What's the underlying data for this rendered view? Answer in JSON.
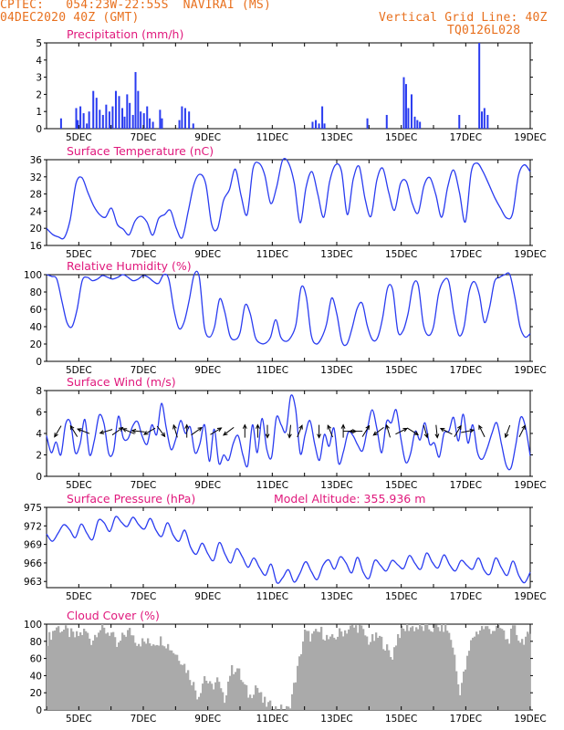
{
  "header": {
    "line1_left": "CPTEC:   054:23W-22:55S  NAVIRAI (MS)",
    "line2_left": "04DEC2020 40Z (GMT)",
    "line1_right": "Vertical Grid Line: 40Z",
    "line2_right": "TQ0126L028"
  },
  "colors": {
    "header": "#e8701e",
    "title": "#e0187c",
    "line": "#2a3cf0",
    "cloud": "#aaaaaa",
    "axis": "#000000"
  },
  "x_ticks": [
    "5DEC",
    "7DEC",
    "9DEC",
    "11DEC",
    "13DEC",
    "15DEC",
    "17DEC",
    "19DEC"
  ],
  "chart_data": [
    {
      "type": "bar",
      "title": "Precipitation (mm/h)",
      "ylim": [
        0,
        5
      ],
      "yticks": [
        0,
        1,
        2,
        3,
        4,
        5
      ],
      "x_start": 4.0,
      "x_end": 19.0,
      "x": [
        4.45,
        4.92,
        4.97,
        5.05,
        5.15,
        5.25,
        5.32,
        5.45,
        5.55,
        5.65,
        5.75,
        5.85,
        5.95,
        6.05,
        6.15,
        6.25,
        6.35,
        6.42,
        6.5,
        6.58,
        6.68,
        6.76,
        6.84,
        6.92,
        7.02,
        7.12,
        7.2,
        7.3,
        7.52,
        7.58,
        8.12,
        8.2,
        8.3,
        8.42,
        8.55,
        12.25,
        12.35,
        12.45,
        12.55,
        12.62,
        13.95,
        14.55,
        15.08,
        15.15,
        15.22,
        15.32,
        15.42,
        15.5,
        15.58,
        16.8,
        17.42,
        17.5,
        17.58,
        17.68
      ],
      "values": [
        0.6,
        1.2,
        0.5,
        1.3,
        0.9,
        0.3,
        1.0,
        2.2,
        1.8,
        1.1,
        0.8,
        1.4,
        1.0,
        1.3,
        2.2,
        1.9,
        1.2,
        0.7,
        2.0,
        1.5,
        0.8,
        3.3,
        2.2,
        1.0,
        0.9,
        1.3,
        0.6,
        0.4,
        1.1,
        0.6,
        0.5,
        1.3,
        1.2,
        1.0,
        0.3,
        0.4,
        0.5,
        0.3,
        1.3,
        0.3,
        0.6,
        0.8,
        3.0,
        2.6,
        1.2,
        2.0,
        0.7,
        0.5,
        0.4,
        0.8,
        5.0,
        1.0,
        1.2,
        0.8
      ],
      "xlabel": "",
      "ylabel": ""
    },
    {
      "type": "line",
      "title": "Surface Temperature (nC)",
      "ylim": [
        16,
        36
      ],
      "yticks": [
        16,
        20,
        24,
        28,
        32,
        36
      ],
      "x_start": 4.0,
      "x_end": 19.0,
      "values": [
        20,
        18.6,
        18,
        17.8,
        22,
        30.5,
        31.8,
        28.4,
        25.2,
        23.2,
        22.6,
        24.7,
        20.9,
        19.8,
        18.5,
        21.7,
        22.8,
        21.5,
        18.4,
        22.3,
        23.2,
        24.2,
        20,
        17.8,
        23.8,
        30.3,
        32.6,
        30.3,
        20.9,
        20,
        26.5,
        29,
        33.8,
        27.5,
        23.2,
        33.9,
        35.2,
        32.4,
        25.8,
        29.6,
        35.8,
        35.3,
        30.5,
        21.3,
        29.6,
        33.2,
        27.9,
        22.6,
        30.9,
        34.8,
        33.3,
        23.2,
        31.5,
        34.4,
        26.9,
        22.8,
        31.3,
        34,
        28.4,
        24.2,
        30.4,
        30.9,
        25.8,
        23.6,
        30,
        31.8,
        27.8,
        22.6,
        29.6,
        33.6,
        28.4,
        21.5,
        33.2,
        35.2,
        33.2,
        30.2,
        27.1,
        24.6,
        22.4,
        23.4,
        32.3,
        34.8,
        33.2
      ],
      "xlabel": "",
      "ylabel": ""
    },
    {
      "type": "line",
      "title": "Relative Humidity (%)",
      "ylim": [
        0,
        100
      ],
      "yticks": [
        0,
        20,
        40,
        60,
        80,
        100
      ],
      "x_start": 4.0,
      "x_end": 19.0,
      "values": [
        100,
        98,
        95,
        70,
        45,
        40,
        60,
        93,
        97,
        93,
        95,
        99,
        97,
        95,
        97,
        100,
        97,
        93,
        95,
        99,
        97,
        92,
        90,
        100,
        95,
        60,
        38,
        45,
        70,
        100,
        97,
        40,
        28,
        40,
        72,
        57,
        30,
        25,
        33,
        65,
        55,
        28,
        21,
        21,
        28,
        48,
        28,
        23,
        28,
        43,
        85,
        75,
        30,
        20,
        27,
        43,
        73,
        55,
        23,
        20,
        38,
        61,
        67,
        41,
        25,
        27,
        50,
        85,
        82,
        35,
        35,
        55,
        88,
        88,
        43,
        30,
        40,
        78,
        93,
        92,
        55,
        30,
        40,
        80,
        92,
        77,
        45,
        62,
        92,
        97,
        100,
        100,
        73,
        40,
        28,
        32
      ],
      "xlabel": "",
      "ylabel": ""
    },
    {
      "type": "line",
      "title": "Surface Wind (m/s)",
      "ylim": [
        0,
        8
      ],
      "yticks": [
        0,
        2,
        4,
        6,
        8
      ],
      "x_start": 4.0,
      "x_end": 19.0,
      "values": [
        3.8,
        2.2,
        3.2,
        2.0,
        4.9,
        5.0,
        2.2,
        3.0,
        5.3,
        2.0,
        3.4,
        5.7,
        4.9,
        2.1,
        2.4,
        5.6,
        3.6,
        3.5,
        4.7,
        5.1,
        3.7,
        3.0,
        4.8,
        3.9,
        6.8,
        4.5,
        2.5,
        3.5,
        5.2,
        4.0,
        4.6,
        2.2,
        3.0,
        4.8,
        1.4,
        4.4,
        1.2,
        2.0,
        1.5,
        3.1,
        3.8,
        2.0,
        1.0,
        4.8,
        2.2,
        5.4,
        2.5,
        1.8,
        5.5,
        4.8,
        4.2,
        7.5,
        6.3,
        2.1,
        3.9,
        5.2,
        3.0,
        1.5,
        3.9,
        2.8,
        4.5,
        1.2,
        2.3,
        4.1,
        3.8,
        2.9,
        2.4,
        4.4,
        6.2,
        4.4,
        2.2,
        5.1,
        5.0,
        6.2,
        3.5,
        1.3,
        2.1,
        4.2,
        3.4,
        5.0,
        3.0,
        3.1,
        1.8,
        4.0,
        4.2,
        5.5,
        3.3,
        5.8,
        3.1,
        4.8,
        2.2,
        1.6,
        2.6,
        4.0,
        5.0,
        3.0,
        1.0,
        0.8,
        3.0,
        5.5,
        4.6,
        1.9
      ],
      "arrows": [
        {
          "x": 4.35,
          "u": -0.6,
          "v": -1.0
        },
        {
          "x": 4.85,
          "u": -0.5,
          "v": 0.8
        },
        {
          "x": 5.15,
          "u": -1.0,
          "v": 0.4
        },
        {
          "x": 5.85,
          "u": -1.0,
          "v": -0.3
        },
        {
          "x": 6.2,
          "u": 1.0,
          "v": 0.7
        },
        {
          "x": 6.55,
          "u": -0.7,
          "v": 0.3
        },
        {
          "x": 6.85,
          "u": -0.9,
          "v": 0.1
        },
        {
          "x": 7.2,
          "u": -0.7,
          "v": -0.4
        },
        {
          "x": 7.55,
          "u": 0.6,
          "v": -0.8
        },
        {
          "x": 8.0,
          "u": -0.3,
          "v": 1.0
        },
        {
          "x": 8.35,
          "u": 0.0,
          "v": 1.0
        },
        {
          "x": 8.65,
          "u": 0.7,
          "v": 0.5
        },
        {
          "x": 9.25,
          "u": 1.0,
          "v": 0.6
        },
        {
          "x": 9.65,
          "u": -0.4,
          "v": -0.3
        },
        {
          "x": 10.15,
          "u": 0.0,
          "v": 1.0
        },
        {
          "x": 10.55,
          "u": 0.0,
          "v": 1.0
        },
        {
          "x": 10.85,
          "u": 0.0,
          "v": -0.8
        },
        {
          "x": 11.55,
          "u": -0.1,
          "v": -1.0
        },
        {
          "x": 11.85,
          "u": 0.4,
          "v": 1.0
        },
        {
          "x": 12.45,
          "u": 0.0,
          "v": -1.0
        },
        {
          "x": 12.8,
          "u": -0.4,
          "v": 1.0
        },
        {
          "x": 13.2,
          "u": 0.0,
          "v": 1.0
        },
        {
          "x": 13.4,
          "u": 0.7,
          "v": 0.0
        },
        {
          "x": 13.6,
          "u": -0.9,
          "v": 0.0
        },
        {
          "x": 13.9,
          "u": 0.5,
          "v": 0.8
        },
        {
          "x": 14.3,
          "u": -0.8,
          "v": -0.6
        },
        {
          "x": 14.6,
          "u": -0.3,
          "v": 1.0
        },
        {
          "x": 15.0,
          "u": 0.8,
          "v": 0.4
        },
        {
          "x": 15.35,
          "u": 0.8,
          "v": -0.5
        },
        {
          "x": 15.75,
          "u": 0.3,
          "v": -1.0
        },
        {
          "x": 16.1,
          "u": 0.1,
          "v": -1.0
        },
        {
          "x": 16.4,
          "u": -0.8,
          "v": 0.4
        },
        {
          "x": 16.75,
          "u": 0.6,
          "v": 1.0
        },
        {
          "x": 17.05,
          "u": 1.0,
          "v": 0.2
        },
        {
          "x": 17.5,
          "u": -0.4,
          "v": 0.8
        },
        {
          "x": 18.3,
          "u": -0.3,
          "v": -0.8
        },
        {
          "x": 18.75,
          "u": 0.4,
          "v": 0.8
        }
      ],
      "xlabel": "",
      "ylabel": ""
    },
    {
      "type": "line",
      "title": "Surface Pressure (hPa)",
      "annotation": "Model Altitude: 355.936  m",
      "ylim": [
        962,
        975
      ],
      "yticks": [
        963,
        966,
        969,
        972,
        975
      ],
      "x_start": 4.0,
      "x_end": 19.0,
      "values": [
        970.7,
        969.5,
        970.8,
        972.2,
        971.4,
        970.1,
        972.3,
        970.8,
        969.8,
        972.9,
        972.5,
        971.1,
        973.5,
        972.6,
        971.9,
        973.4,
        972.2,
        971.5,
        973.2,
        971.3,
        970.3,
        972.5,
        970.5,
        969.5,
        971.3,
        968.6,
        967.4,
        969.2,
        967.5,
        966.4,
        969.3,
        967.4,
        966.0,
        968.3,
        967.0,
        965.3,
        966.8,
        965.2,
        964.0,
        965.8,
        962.8,
        963.6,
        964.9,
        962.9,
        964.3,
        966.2,
        964.6,
        963.3,
        965.6,
        966.5,
        965.0,
        967.0,
        966.0,
        964.4,
        966.9,
        964.5,
        963.5,
        966.4,
        965.6,
        964.7,
        966.4,
        965.7,
        965.1,
        967.2,
        965.9,
        965.0,
        967.6,
        966.1,
        965.2,
        967.3,
        965.7,
        964.7,
        966.4,
        965.6,
        965.0,
        966.8,
        964.8,
        964.2,
        966.8,
        965.2,
        964.0,
        966.3,
        964.0,
        962.8,
        964.5
      ],
      "xlabel": "",
      "ylabel": ""
    },
    {
      "type": "bar",
      "title": "Cloud Cover (%)",
      "ylim": [
        0,
        100
      ],
      "yticks": [
        0,
        20,
        40,
        60,
        80,
        100
      ],
      "x_start": 4.0,
      "x_end": 19.0,
      "knots": [
        [
          4.0,
          80
        ],
        [
          4.3,
          97
        ],
        [
          4.6,
          92
        ],
        [
          4.9,
          85
        ],
        [
          5.2,
          92
        ],
        [
          5.4,
          80
        ],
        [
          5.6,
          95
        ],
        [
          6.0,
          90
        ],
        [
          6.2,
          72
        ],
        [
          6.4,
          88
        ],
        [
          6.6,
          92
        ],
        [
          6.8,
          80
        ],
        [
          7.2,
          78
        ],
        [
          7.6,
          82
        ],
        [
          7.9,
          70
        ],
        [
          8.2,
          58
        ],
        [
          8.5,
          35
        ],
        [
          8.7,
          15
        ],
        [
          8.9,
          40
        ],
        [
          9.1,
          25
        ],
        [
          9.3,
          35
        ],
        [
          9.5,
          10
        ],
        [
          9.7,
          45
        ],
        [
          9.9,
          50
        ],
        [
          10.1,
          30
        ],
        [
          10.3,
          15
        ],
        [
          10.5,
          30
        ],
        [
          10.7,
          10
        ],
        [
          10.9,
          5
        ],
        [
          11.1,
          1
        ],
        [
          11.3,
          0
        ],
        [
          11.5,
          0
        ],
        [
          11.6,
          15
        ],
        [
          11.8,
          50
        ],
        [
          12.0,
          90
        ],
        [
          12.2,
          85
        ],
        [
          12.5,
          92
        ],
        [
          12.8,
          80
        ],
        [
          13.1,
          90
        ],
        [
          13.4,
          95
        ],
        [
          13.7,
          97
        ],
        [
          14.0,
          80
        ],
        [
          14.3,
          85
        ],
        [
          14.5,
          75
        ],
        [
          14.7,
          60
        ],
        [
          14.9,
          88
        ],
        [
          15.2,
          97
        ],
        [
          15.5,
          96
        ],
        [
          15.8,
          95
        ],
        [
          16.1,
          95
        ],
        [
          16.4,
          97
        ],
        [
          16.6,
          75
        ],
        [
          16.8,
          20
        ],
        [
          17.0,
          50
        ],
        [
          17.2,
          85
        ],
        [
          17.5,
          96
        ],
        [
          17.8,
          94
        ],
        [
          18.1,
          95
        ],
        [
          18.3,
          80
        ],
        [
          18.5,
          95
        ],
        [
          18.7,
          80
        ],
        [
          18.9,
          85
        ],
        [
          19.0,
          82
        ]
      ],
      "xlabel": "",
      "ylabel": ""
    }
  ]
}
